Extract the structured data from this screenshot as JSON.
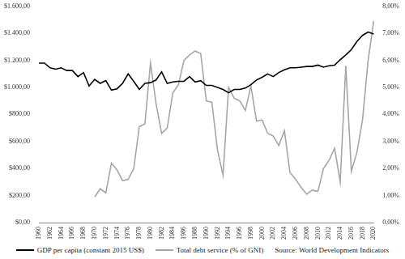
{
  "chart_data": {
    "type": "line",
    "categories": [
      "1960",
      null,
      "1962",
      null,
      "1964",
      null,
      "1966",
      null,
      "1968",
      null,
      "1970",
      null,
      "1972",
      null,
      "1974",
      null,
      "1976",
      null,
      "1978",
      null,
      "1980",
      null,
      "1982",
      null,
      "1984",
      null,
      "1986",
      null,
      "1988",
      null,
      "1990",
      null,
      "1992",
      null,
      "1994",
      null,
      "1996",
      null,
      "1998",
      null,
      "2000",
      null,
      "2002",
      null,
      "2004",
      null,
      "2006",
      null,
      "2008",
      null,
      "2010",
      null,
      "2012",
      null,
      "2014",
      null,
      "2016",
      null,
      "2018",
      null,
      "2020"
    ],
    "series": [
      {
        "name": "GDP per capita (constant 2015 US$)",
        "color": "#000000",
        "values": [
          1180,
          1180,
          1145,
          1135,
          1145,
          1125,
          1125,
          1080,
          1110,
          1010,
          1060,
          1030,
          1050,
          980,
          990,
          1030,
          1100,
          1045,
          985,
          1030,
          1035,
          1055,
          1115,
          1030,
          1040,
          1045,
          1045,
          1080,
          1040,
          1050,
          1015,
          1015,
          1000,
          985,
          960,
          985,
          985,
          995,
          1020,
          1055,
          1075,
          1100,
          1080,
          1110,
          1130,
          1145,
          1145,
          1150,
          1155,
          1155,
          1165,
          1150,
          1160,
          1165,
          1205,
          1240,
          1280,
          1340,
          1385,
          1410,
          1395
        ]
      },
      {
        "name": "Total debt service (% of GNI)",
        "color": "#a6a6a6",
        "axis": "y2",
        "values": [
          null,
          null,
          null,
          null,
          null,
          null,
          null,
          null,
          null,
          null,
          0.95,
          1.25,
          1.1,
          2.2,
          1.95,
          1.55,
          1.6,
          2.0,
          3.55,
          3.65,
          5.9,
          4.4,
          3.3,
          3.5,
          4.8,
          5.1,
          6.0,
          6.2,
          6.35,
          6.25,
          4.5,
          4.45,
          2.7,
          1.75,
          5.0,
          4.6,
          4.5,
          4.15,
          5.05,
          3.75,
          3.8,
          3.3,
          3.2,
          2.85,
          3.4,
          1.85,
          1.6,
          1.3,
          1.05,
          1.2,
          1.15,
          2.0,
          2.3,
          2.75,
          1.5,
          5.8,
          1.9,
          2.6,
          3.8,
          6.0,
          7.45
        ]
      }
    ],
    "ylim": [
      0,
      1600
    ],
    "yticks": [
      {
        "value": 0,
        "label": "$0,00"
      },
      {
        "value": 200,
        "label": "$200,00"
      },
      {
        "value": 400,
        "label": "$400,00"
      },
      {
        "value": 600,
        "label": "$600,00"
      },
      {
        "value": 800,
        "label": "$800,00"
      },
      {
        "value": 1000,
        "label": "$1.000,00"
      },
      {
        "value": 1200,
        "label": "$1.200,00"
      },
      {
        "value": 1400,
        "label": "$1.400,00"
      },
      {
        "value": 1600,
        "label": "$1.600,00"
      }
    ],
    "y2lim": [
      0,
      8
    ],
    "y2ticks": [
      {
        "value": 0,
        "label": "0,00%"
      },
      {
        "value": 1,
        "label": "1,00%"
      },
      {
        "value": 2,
        "label": "2,00%"
      },
      {
        "value": 3,
        "label": "3,00%"
      },
      {
        "value": 4,
        "label": "4,00%"
      },
      {
        "value": 5,
        "label": "5,00%"
      },
      {
        "value": 6,
        "label": "6,00%"
      },
      {
        "value": 7,
        "label": "7,00%"
      },
      {
        "value": 8,
        "label": "8,00%"
      }
    ],
    "grid": false,
    "legend": "bottom",
    "source": "Source: World Development Indicators"
  }
}
